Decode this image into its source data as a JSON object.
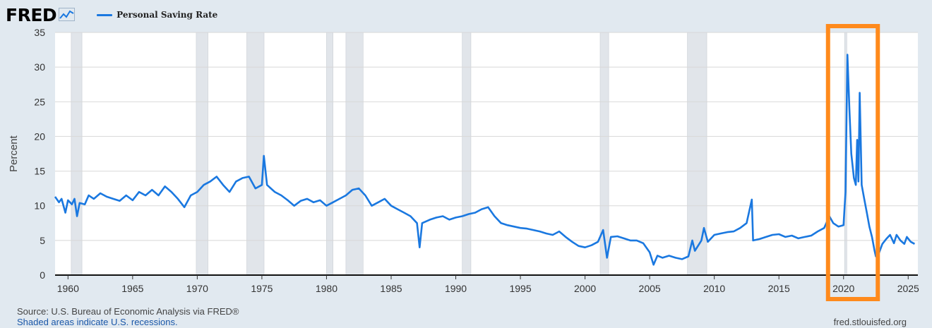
{
  "header": {
    "logo": "FRED",
    "legend_label": "Personal Saving Rate"
  },
  "footer": {
    "source": "Source: U.S. Bureau of Economic Analysis via FRED®",
    "recession_note": "Shaded areas indicate U.S. recessions.",
    "site": "fred.stlouisfed.org"
  },
  "colors": {
    "series": "#1a78e0",
    "highlight": "#ff8a1c",
    "recession": "#e1e5ea",
    "plot_bg": "#ffffff",
    "page_bg": "#e1e9f0"
  },
  "icons": {
    "logo_icon": "line-chart-icon"
  },
  "chart_data": {
    "type": "line",
    "ylabel": "Percent",
    "xlim": [
      1959,
      2025.75
    ],
    "ylim": [
      0,
      35
    ],
    "yticks": [
      0,
      5,
      10,
      15,
      20,
      25,
      30,
      35
    ],
    "xticks": [
      1960,
      1965,
      1970,
      1975,
      1980,
      1985,
      1990,
      1995,
      2000,
      2005,
      2010,
      2015,
      2020,
      2025
    ],
    "grid": true,
    "recessions": [
      [
        1960.25,
        1961.08
      ],
      [
        1969.92,
        1970.83
      ],
      [
        1973.83,
        1975.17
      ],
      [
        1980.0,
        1980.5
      ],
      [
        1981.5,
        1982.83
      ],
      [
        1990.5,
        1991.17
      ],
      [
        2001.17,
        2001.83
      ],
      [
        2007.92,
        2009.42
      ],
      [
        2020.08,
        2020.25
      ]
    ],
    "highlight_box": [
      2018.8,
      2022.65
    ],
    "series": [
      {
        "name": "Personal Saving Rate",
        "points": [
          [
            1959.0,
            11.3
          ],
          [
            1959.3,
            10.5
          ],
          [
            1959.5,
            11.0
          ],
          [
            1959.8,
            9.0
          ],
          [
            1960.0,
            10.8
          ],
          [
            1960.3,
            10.2
          ],
          [
            1960.5,
            11.0
          ],
          [
            1960.7,
            8.5
          ],
          [
            1960.9,
            10.4
          ],
          [
            1961.3,
            10.2
          ],
          [
            1961.6,
            11.5
          ],
          [
            1962.0,
            11.0
          ],
          [
            1962.5,
            11.8
          ],
          [
            1963.0,
            11.3
          ],
          [
            1963.5,
            11.0
          ],
          [
            1964.0,
            10.7
          ],
          [
            1964.5,
            11.5
          ],
          [
            1965.0,
            10.8
          ],
          [
            1965.5,
            12.0
          ],
          [
            1966.0,
            11.5
          ],
          [
            1966.5,
            12.3
          ],
          [
            1967.0,
            11.5
          ],
          [
            1967.5,
            12.8
          ],
          [
            1968.0,
            12.0
          ],
          [
            1968.5,
            11.0
          ],
          [
            1969.0,
            9.8
          ],
          [
            1969.5,
            11.5
          ],
          [
            1970.0,
            12.0
          ],
          [
            1970.5,
            13.0
          ],
          [
            1971.0,
            13.5
          ],
          [
            1971.5,
            14.2
          ],
          [
            1972.0,
            13.0
          ],
          [
            1972.5,
            12.0
          ],
          [
            1973.0,
            13.5
          ],
          [
            1973.5,
            14.0
          ],
          [
            1974.0,
            14.2
          ],
          [
            1974.5,
            12.5
          ],
          [
            1975.0,
            13.0
          ],
          [
            1975.15,
            17.2
          ],
          [
            1975.4,
            13.0
          ],
          [
            1976.0,
            12.0
          ],
          [
            1976.5,
            11.5
          ],
          [
            1977.0,
            10.8
          ],
          [
            1977.5,
            10.0
          ],
          [
            1978.0,
            10.7
          ],
          [
            1978.5,
            11.0
          ],
          [
            1979.0,
            10.5
          ],
          [
            1979.5,
            10.8
          ],
          [
            1980.0,
            10.0
          ],
          [
            1980.5,
            10.5
          ],
          [
            1981.0,
            11.0
          ],
          [
            1981.5,
            11.5
          ],
          [
            1982.0,
            12.3
          ],
          [
            1982.5,
            12.5
          ],
          [
            1983.0,
            11.5
          ],
          [
            1983.5,
            10.0
          ],
          [
            1984.0,
            10.5
          ],
          [
            1984.5,
            11.0
          ],
          [
            1985.0,
            10.0
          ],
          [
            1985.5,
            9.5
          ],
          [
            1986.0,
            9.0
          ],
          [
            1986.5,
            8.5
          ],
          [
            1987.0,
            7.5
          ],
          [
            1987.2,
            4.0
          ],
          [
            1987.4,
            7.5
          ],
          [
            1988.0,
            8.0
          ],
          [
            1988.5,
            8.3
          ],
          [
            1989.0,
            8.5
          ],
          [
            1989.5,
            8.0
          ],
          [
            1990.0,
            8.3
          ],
          [
            1990.5,
            8.5
          ],
          [
            1991.0,
            8.8
          ],
          [
            1991.5,
            9.0
          ],
          [
            1992.0,
            9.5
          ],
          [
            1992.5,
            9.8
          ],
          [
            1993.0,
            8.5
          ],
          [
            1993.5,
            7.5
          ],
          [
            1994.0,
            7.2
          ],
          [
            1994.5,
            7.0
          ],
          [
            1995.0,
            6.8
          ],
          [
            1995.5,
            6.7
          ],
          [
            1996.0,
            6.5
          ],
          [
            1996.5,
            6.3
          ],
          [
            1997.0,
            6.0
          ],
          [
            1997.5,
            5.8
          ],
          [
            1998.0,
            6.3
          ],
          [
            1998.5,
            5.5
          ],
          [
            1999.0,
            4.8
          ],
          [
            1999.5,
            4.2
          ],
          [
            2000.0,
            4.0
          ],
          [
            2000.5,
            4.3
          ],
          [
            2001.0,
            4.8
          ],
          [
            2001.4,
            6.5
          ],
          [
            2001.7,
            2.5
          ],
          [
            2002.0,
            5.5
          ],
          [
            2002.5,
            5.6
          ],
          [
            2003.0,
            5.3
          ],
          [
            2003.5,
            5.0
          ],
          [
            2004.0,
            5.0
          ],
          [
            2004.5,
            4.6
          ],
          [
            2005.0,
            3.3
          ],
          [
            2005.3,
            1.5
          ],
          [
            2005.6,
            2.8
          ],
          [
            2006.0,
            2.5
          ],
          [
            2006.5,
            2.8
          ],
          [
            2007.0,
            2.5
          ],
          [
            2007.5,
            2.3
          ],
          [
            2008.0,
            2.7
          ],
          [
            2008.3,
            5.0
          ],
          [
            2008.5,
            3.5
          ],
          [
            2009.0,
            5.0
          ],
          [
            2009.2,
            6.8
          ],
          [
            2009.5,
            4.8
          ],
          [
            2010.0,
            5.8
          ],
          [
            2010.5,
            6.0
          ],
          [
            2011.0,
            6.2
          ],
          [
            2011.5,
            6.3
          ],
          [
            2012.0,
            6.8
          ],
          [
            2012.5,
            7.5
          ],
          [
            2012.9,
            10.9
          ],
          [
            2013.0,
            5.0
          ],
          [
            2013.5,
            5.2
          ],
          [
            2014.0,
            5.5
          ],
          [
            2014.5,
            5.8
          ],
          [
            2015.0,
            5.9
          ],
          [
            2015.5,
            5.5
          ],
          [
            2016.0,
            5.7
          ],
          [
            2016.5,
            5.3
          ],
          [
            2017.0,
            5.5
          ],
          [
            2017.5,
            5.7
          ],
          [
            2018.0,
            6.3
          ],
          [
            2018.5,
            6.8
          ],
          [
            2018.9,
            8.5
          ],
          [
            2019.2,
            7.5
          ],
          [
            2019.6,
            7.0
          ],
          [
            2020.0,
            7.2
          ],
          [
            2020.15,
            12.0
          ],
          [
            2020.3,
            31.8
          ],
          [
            2020.45,
            24.0
          ],
          [
            2020.6,
            17.5
          ],
          [
            2020.8,
            14.0
          ],
          [
            2020.95,
            13.0
          ],
          [
            2021.05,
            19.5
          ],
          [
            2021.15,
            13.5
          ],
          [
            2021.25,
            26.3
          ],
          [
            2021.4,
            13.0
          ],
          [
            2021.6,
            11.0
          ],
          [
            2021.8,
            9.0
          ],
          [
            2022.0,
            7.0
          ],
          [
            2022.2,
            5.5
          ],
          [
            2022.4,
            3.5
          ],
          [
            2022.5,
            2.7
          ],
          [
            2022.7,
            3.0
          ],
          [
            2023.0,
            4.5
          ],
          [
            2023.3,
            5.2
          ],
          [
            2023.6,
            5.8
          ],
          [
            2023.9,
            4.6
          ],
          [
            2024.1,
            5.8
          ],
          [
            2024.4,
            5.0
          ],
          [
            2024.7,
            4.5
          ],
          [
            2024.9,
            5.5
          ],
          [
            2025.2,
            4.8
          ],
          [
            2025.5,
            4.5
          ]
        ]
      }
    ]
  }
}
